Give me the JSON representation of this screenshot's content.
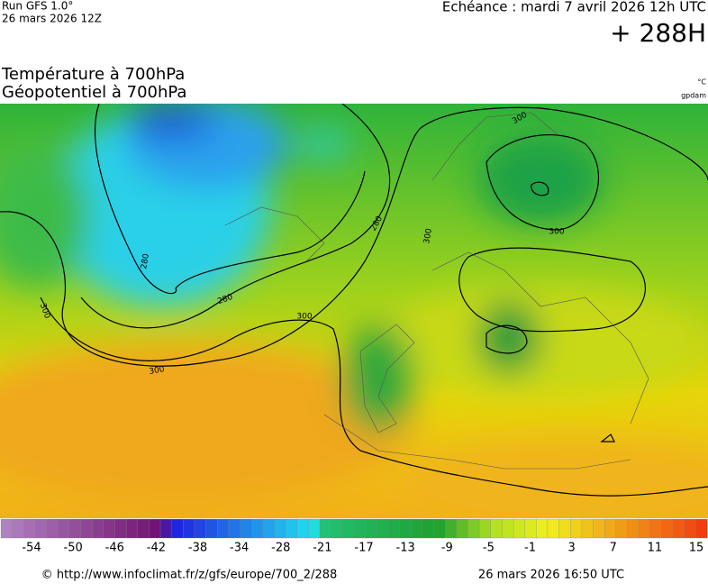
{
  "header": {
    "run": "Run GFS 1.0°",
    "run_date": "26 mars 2026 12Z",
    "valid": "Echéance : mardi 7 avril 2026 12h UTC",
    "lead": "+ 288H"
  },
  "titles": {
    "temperature": "Température à 700hPa",
    "geopotential": "Géopotentiel à 700hPa"
  },
  "units": {
    "temperature": "°C",
    "geopotential": "gpdam"
  },
  "contour_labels": [
    300,
    300,
    300,
    280,
    280,
    280,
    300,
    300,
    300
  ],
  "colorbar": {
    "ticks": [
      -54,
      -50,
      -46,
      -42,
      -38,
      -34,
      -28,
      -21,
      -17,
      -13,
      -9,
      -5,
      -1,
      3,
      7,
      11,
      15
    ]
  },
  "footer": {
    "url": "© http://www.infoclimat.fr/z/gfs/europe/700_2/288",
    "generated": "26 mars 2026 16:50 UTC"
  }
}
